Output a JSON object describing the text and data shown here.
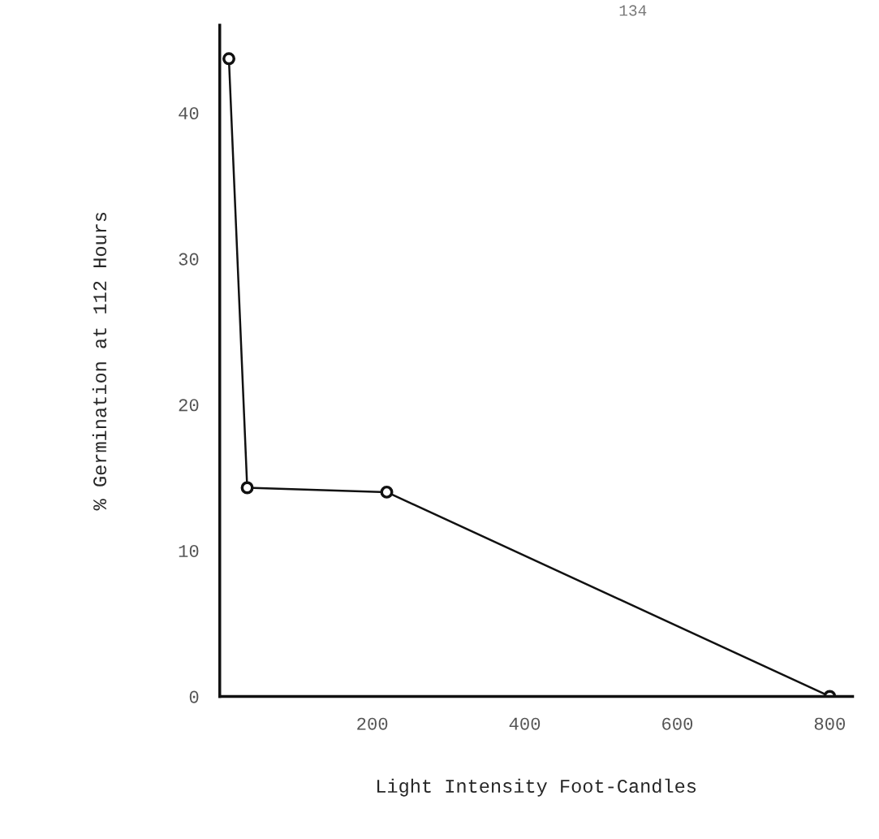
{
  "chart_data": {
    "type": "line",
    "xlabel": "Light Intensity Foot-Candles",
    "ylabel": "% Germination at 112 Hours",
    "annotations": [
      "134"
    ],
    "x": [
      12,
      36,
      219,
      800
    ],
    "series": [
      {
        "color": "#111111",
        "values": [
          43.7,
          14.3,
          14.0,
          0
        ]
      }
    ],
    "marker": "circle",
    "line_style": "solid",
    "xlim": [
      0,
      830
    ],
    "xticks": [
      200,
      400,
      600,
      800
    ],
    "ylim": [
      0,
      46
    ],
    "yticks": [
      0,
      10,
      20,
      30,
      40
    ],
    "grid": false,
    "legend": false
  }
}
